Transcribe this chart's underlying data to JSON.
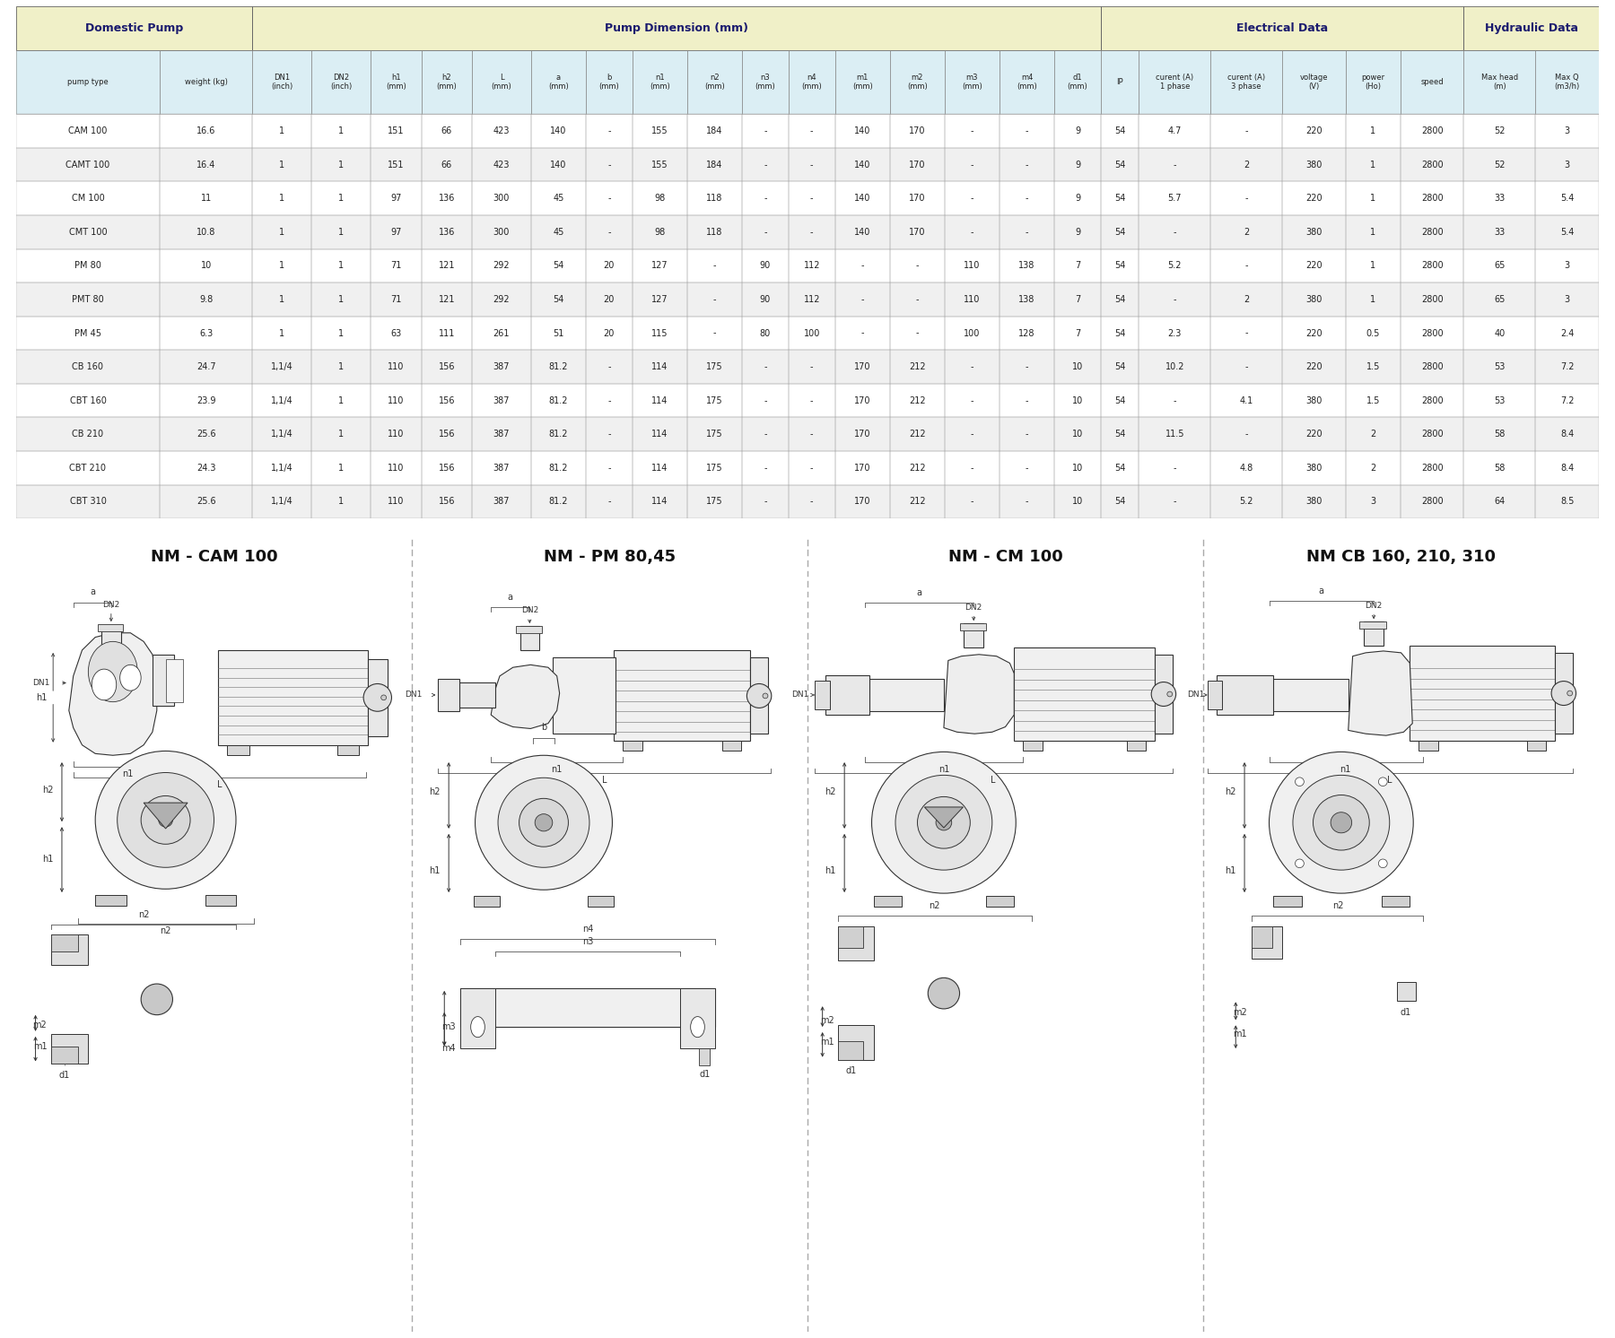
{
  "bg_color": "#ffffff",
  "row_bg_even": "#ffffff",
  "row_bg_odd": "#f0f0f0",
  "border_color": "#555555",
  "text_color": "#222222",
  "group_header_color": "#f0f0c8",
  "header_row_color": "#dbeef4",
  "table_title_color": "#000000",
  "columns": [
    "pump type",
    "weight (kg)",
    "DN1\n(inch)",
    "DN2\n(inch)",
    "h1\n(mm)",
    "h2\n(mm)",
    "L\n(mm)",
    "a\n(mm)",
    "b\n(mm)",
    "n1\n(mm)",
    "n2\n(mm)",
    "n3\n(mm)",
    "n4\n(mm)",
    "m1\n(mm)",
    "m2\n(mm)",
    "m3\n(mm)",
    "m4\n(mm)",
    "d1\n(mm)",
    "IP",
    "curent (A)\n1 phase",
    "curent (A)\n3 phase",
    "voltage\n(V)",
    "power\n(Ho)",
    "speed",
    "Max head\n(m)",
    "Max Q\n(m3/h)"
  ],
  "col_widths_raw": [
    1.7,
    1.1,
    0.7,
    0.7,
    0.6,
    0.6,
    0.7,
    0.65,
    0.55,
    0.65,
    0.65,
    0.55,
    0.55,
    0.65,
    0.65,
    0.65,
    0.65,
    0.55,
    0.45,
    0.85,
    0.85,
    0.75,
    0.65,
    0.75,
    0.85,
    0.75
  ],
  "rows": [
    [
      "CAM 100",
      "16.6",
      "1",
      "1",
      "151",
      "66",
      "423",
      "140",
      "-",
      "155",
      "184",
      "-",
      "-",
      "140",
      "170",
      "-",
      "-",
      "9",
      "54",
      "4.7",
      "-",
      "220",
      "1",
      "2800",
      "52",
      "3"
    ],
    [
      "CAMT 100",
      "16.4",
      "1",
      "1",
      "151",
      "66",
      "423",
      "140",
      "-",
      "155",
      "184",
      "-",
      "-",
      "140",
      "170",
      "-",
      "-",
      "9",
      "54",
      "-",
      "2",
      "380",
      "1",
      "2800",
      "52",
      "3"
    ],
    [
      "CM 100",
      "11",
      "1",
      "1",
      "97",
      "136",
      "300",
      "45",
      "-",
      "98",
      "118",
      "-",
      "-",
      "140",
      "170",
      "-",
      "-",
      "9",
      "54",
      "5.7",
      "-",
      "220",
      "1",
      "2800",
      "33",
      "5.4"
    ],
    [
      "CMT 100",
      "10.8",
      "1",
      "1",
      "97",
      "136",
      "300",
      "45",
      "-",
      "98",
      "118",
      "-",
      "-",
      "140",
      "170",
      "-",
      "-",
      "9",
      "54",
      "-",
      "2",
      "380",
      "1",
      "2800",
      "33",
      "5.4"
    ],
    [
      "PM 80",
      "10",
      "1",
      "1",
      "71",
      "121",
      "292",
      "54",
      "20",
      "127",
      "-",
      "90",
      "112",
      "-",
      "-",
      "110",
      "138",
      "7",
      "54",
      "5.2",
      "-",
      "220",
      "1",
      "2800",
      "65",
      "3"
    ],
    [
      "PMT 80",
      "9.8",
      "1",
      "1",
      "71",
      "121",
      "292",
      "54",
      "20",
      "127",
      "-",
      "90",
      "112",
      "-",
      "-",
      "110",
      "138",
      "7",
      "54",
      "-",
      "2",
      "380",
      "1",
      "2800",
      "65",
      "3"
    ],
    [
      "PM 45",
      "6.3",
      "1",
      "1",
      "63",
      "111",
      "261",
      "51",
      "20",
      "115",
      "-",
      "80",
      "100",
      "-",
      "-",
      "100",
      "128",
      "7",
      "54",
      "2.3",
      "-",
      "220",
      "0.5",
      "2800",
      "40",
      "2.4"
    ],
    [
      "CB 160",
      "24.7",
      "1,1/4",
      "1",
      "110",
      "156",
      "387",
      "81.2",
      "-",
      "114",
      "175",
      "-",
      "-",
      "170",
      "212",
      "-",
      "-",
      "10",
      "54",
      "10.2",
      "-",
      "220",
      "1.5",
      "2800",
      "53",
      "7.2"
    ],
    [
      "CBT 160",
      "23.9",
      "1,1/4",
      "1",
      "110",
      "156",
      "387",
      "81.2",
      "-",
      "114",
      "175",
      "-",
      "-",
      "170",
      "212",
      "-",
      "-",
      "10",
      "54",
      "-",
      "4.1",
      "380",
      "1.5",
      "2800",
      "53",
      "7.2"
    ],
    [
      "CB 210",
      "25.6",
      "1,1/4",
      "1",
      "110",
      "156",
      "387",
      "81.2",
      "-",
      "114",
      "175",
      "-",
      "-",
      "170",
      "212",
      "-",
      "-",
      "10",
      "54",
      "11.5",
      "-",
      "220",
      "2",
      "2800",
      "58",
      "8.4"
    ],
    [
      "CBT 210",
      "24.3",
      "1,1/4",
      "1",
      "110",
      "156",
      "387",
      "81.2",
      "-",
      "114",
      "175",
      "-",
      "-",
      "170",
      "212",
      "-",
      "-",
      "10",
      "54",
      "-",
      "4.8",
      "380",
      "2",
      "2800",
      "58",
      "8.4"
    ],
    [
      "CBT 310",
      "25.6",
      "1,1/4",
      "1",
      "110",
      "156",
      "387",
      "81.2",
      "-",
      "114",
      "175",
      "-",
      "-",
      "170",
      "212",
      "-",
      "-",
      "10",
      "54",
      "-",
      "5.2",
      "380",
      "3",
      "2800",
      "64",
      "8.5"
    ]
  ],
  "group_spans": [
    [
      0,
      1,
      "Domestic Pump"
    ],
    [
      2,
      17,
      "Pump Dimension (mm)"
    ],
    [
      18,
      23,
      "Electrical Data"
    ],
    [
      24,
      25,
      "Hydraulic Data"
    ]
  ],
  "pump_labels": [
    "NM - CAM 100",
    "NM - PM 80,45",
    "NM - CM 100",
    "NM CB 160, 210, 310"
  ],
  "lc": "#333333",
  "lw": 0.8
}
